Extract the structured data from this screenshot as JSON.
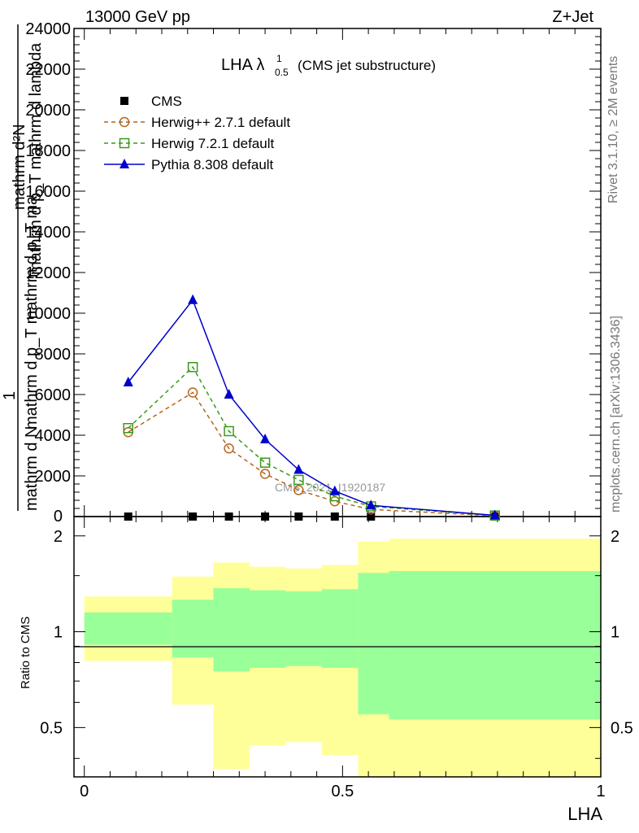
{
  "header": {
    "energy": "13000 GeV pp",
    "process": "Z+Jet"
  },
  "side_labels": {
    "rivet": "Rivet 3.1.10, ≥ 2M events",
    "mcplots": "mcplots.cern.ch [arXiv:1306.3436]"
  },
  "title": {
    "main": "LHA λ",
    "sup": "1",
    "sub": "0.5",
    "extra": "(CMS jet substructure)"
  },
  "ylabel_main": {
    "line1": "mathrm d²N",
    "line2": "mathrm d p_T mathrm d lambda",
    "denominator": "mathrm d N / mathrm d p_T",
    "one": "1",
    "den_inner": "mathrm d p_T mathrm d p_T ma",
    "den_line": "mathrm d N"
  },
  "ylabel_ratio": "Ratio to CMS",
  "xlabel": "LHA",
  "watermark": "CMS_2021_I1920187",
  "legend": [
    {
      "name": "CMS",
      "color": "#000000",
      "marker": "square-filled",
      "dash": false
    },
    {
      "name": "Herwig++ 2.7.1 default",
      "color": "#b5651d",
      "marker": "circle-open",
      "dash": true
    },
    {
      "name": "Herwig 7.2.1 default",
      "color": "#3a9a1a",
      "marker": "square-open",
      "dash": true
    },
    {
      "name": "Pythia 8.308 default",
      "color": "#0000cc",
      "marker": "triangle-filled",
      "dash": false
    }
  ],
  "chart_data": {
    "type": "line",
    "x": [
      0.085,
      0.21,
      0.28,
      0.35,
      0.415,
      0.485,
      0.555,
      0.795
    ],
    "series": [
      {
        "name": "CMS",
        "values": [
          0,
          0,
          0,
          0,
          0,
          0,
          0,
          0
        ]
      },
      {
        "name": "Herwig++ 2.7.1 default",
        "values": [
          4150,
          6100,
          3350,
          2100,
          1300,
          750,
          350,
          40
        ]
      },
      {
        "name": "Herwig 7.2.1 default",
        "values": [
          4350,
          7350,
          4200,
          2650,
          1800,
          1000,
          500,
          50
        ]
      },
      {
        "name": "Pythia 8.308 default",
        "values": [
          6600,
          10650,
          6000,
          3800,
          2300,
          1250,
          550,
          60
        ]
      }
    ],
    "xlim": [
      -0.02,
      1.0
    ],
    "ylim": [
      0,
      24000
    ],
    "yticks": [
      2000,
      4000,
      6000,
      8000,
      10000,
      12000,
      14000,
      16000,
      18000,
      20000,
      22000,
      24000
    ],
    "ytick_labels": [
      "2000",
      "4000",
      "6000",
      "8000",
      "10000",
      "12000",
      "14000",
      "16000",
      "18000",
      "20000",
      "22000",
      "24000"
    ],
    "xticks": [
      0,
      0.5,
      1
    ],
    "xtick_labels": [
      "0",
      "0.5",
      "1"
    ],
    "ratio": {
      "ylim": [
        0.35,
        2.3
      ],
      "log": true,
      "yticks": [
        0.5,
        1,
        2
      ],
      "ytick_labels": [
        "0.5",
        "1",
        "2"
      ],
      "band_bins": [
        0,
        0.17,
        0.25,
        0.32,
        0.39,
        0.46,
        0.53,
        0.59,
        1.0
      ],
      "yellow_low": [
        0.81,
        0.59,
        0.37,
        0.44,
        0.45,
        0.41,
        0.33,
        0.33
      ],
      "yellow_high": [
        1.29,
        1.49,
        1.65,
        1.6,
        1.58,
        1.62,
        1.92,
        1.96
      ],
      "green_low": [
        0.91,
        0.83,
        0.75,
        0.77,
        0.78,
        0.77,
        0.55,
        0.53
      ],
      "green_high": [
        1.15,
        1.26,
        1.37,
        1.35,
        1.34,
        1.36,
        1.53,
        1.55
      ]
    }
  }
}
